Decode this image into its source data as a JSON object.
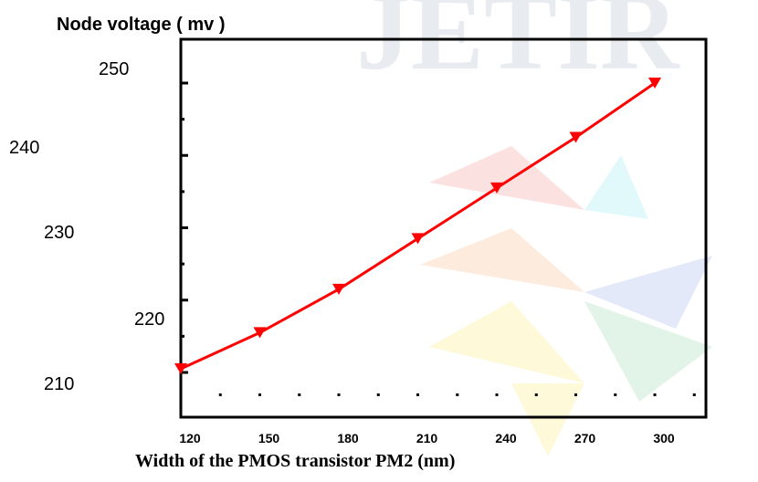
{
  "chart_data": {
    "type": "line",
    "title": "Node voltage ( mv )",
    "xlabel": "Width of the PMOS transistor PM2 (nm)",
    "ylabel": "",
    "x": [
      120,
      150,
      180,
      210,
      240,
      270,
      300
    ],
    "x_tick_labels": [
      "120",
      "150",
      "180",
      "210",
      "240",
      "270",
      "300"
    ],
    "y_tick_labels": [
      "250",
      "240",
      "230",
      "220",
      "210"
    ],
    "xlim": [
      110,
      330
    ],
    "ylim": [
      209,
      253
    ],
    "grid": false,
    "series": [
      {
        "values": [
          210.5,
          215.5,
          221.5,
          228.5,
          235.5,
          242.5,
          250.0
        ],
        "color": "#ff0000",
        "marker": "triangle-down"
      }
    ]
  },
  "watermark": {
    "text": "JETIR"
  }
}
